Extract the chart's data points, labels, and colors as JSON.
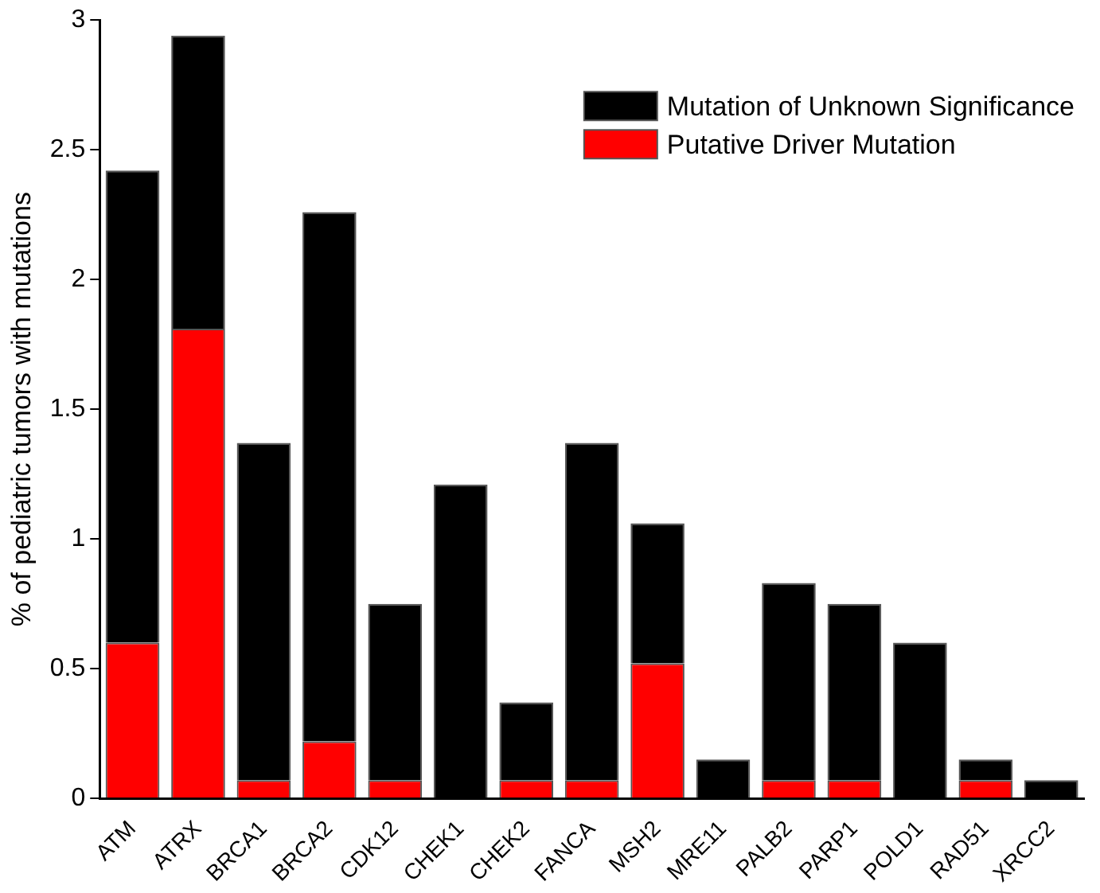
{
  "chart_data": {
    "type": "bar",
    "stacked": true,
    "ylabel": "% of pediatric tumors with mutations",
    "categories": [
      "ATM",
      "ATRX",
      "BRCA1",
      "BRCA2",
      "CDK12",
      "CHEK1",
      "CHEK2",
      "FANCA",
      "MSH2",
      "MRE11",
      "PALB2",
      "PARP1",
      "POLD1",
      "RAD51",
      "XRCC2"
    ],
    "series": [
      {
        "name": "Putative Driver Mutation",
        "color": "#ff0000",
        "values": [
          0.6,
          1.81,
          0.07,
          0.22,
          0.07,
          0,
          0.07,
          0.07,
          0.52,
          0,
          0.07,
          0.07,
          0,
          0.07,
          0
        ]
      },
      {
        "name": "Mutation of Unknown Significance",
        "color": "#000000",
        "values": [
          1.82,
          1.13,
          1.3,
          2.04,
          0.68,
          1.21,
          0.3,
          1.3,
          0.54,
          0.15,
          0.76,
          0.68,
          0.6,
          0.08,
          0.07
        ]
      }
    ],
    "ylim": [
      0,
      3
    ],
    "yticks": [
      0,
      0.5,
      1,
      1.5,
      2,
      2.5,
      3
    ],
    "grid": false,
    "legend": "top right"
  }
}
